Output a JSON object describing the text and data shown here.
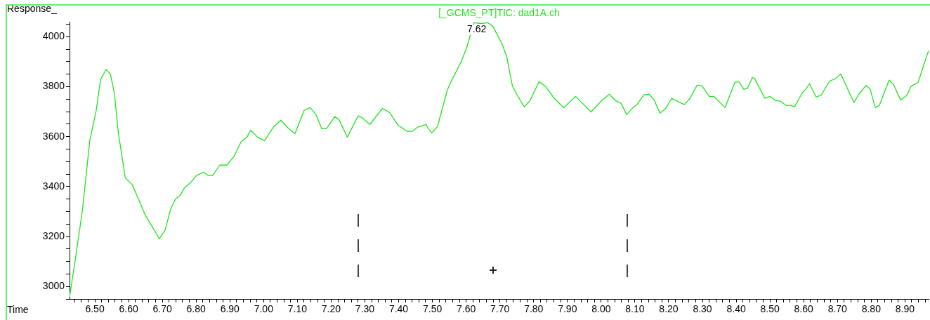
{
  "chart_data": {
    "type": "line",
    "title": "[_GCMS_PT]TIC: dad1A.ch",
    "xlabel": "Time",
    "ylabel": "Response_",
    "marker": "none",
    "xlim": [
      6.425,
      8.97
    ],
    "ylim": [
      2950,
      4060
    ],
    "xticks": [
      {
        "value": 6.44,
        "label": null
      },
      {
        "value": 6.46,
        "label": null
      },
      {
        "value": 6.48,
        "label": null
      },
      {
        "value": 6.5,
        "label": "6.50"
      },
      {
        "value": 6.52,
        "label": null
      },
      {
        "value": 6.54,
        "label": null
      },
      {
        "value": 6.56,
        "label": null
      },
      {
        "value": 6.58,
        "label": null
      },
      {
        "value": 6.6,
        "label": "6.60"
      },
      {
        "value": 6.62,
        "label": null
      },
      {
        "value": 6.64,
        "label": null
      },
      {
        "value": 6.66,
        "label": null
      },
      {
        "value": 6.68,
        "label": null
      },
      {
        "value": 6.7,
        "label": "6.70"
      },
      {
        "value": 6.72,
        "label": null
      },
      {
        "value": 6.74,
        "label": null
      },
      {
        "value": 6.76,
        "label": null
      },
      {
        "value": 6.78,
        "label": null
      },
      {
        "value": 6.8,
        "label": "6.80"
      },
      {
        "value": 6.82,
        "label": null
      },
      {
        "value": 6.84,
        "label": null
      },
      {
        "value": 6.86,
        "label": null
      },
      {
        "value": 6.88,
        "label": null
      },
      {
        "value": 6.9,
        "label": "6.90"
      },
      {
        "value": 6.92,
        "label": null
      },
      {
        "value": 6.94,
        "label": null
      },
      {
        "value": 6.96,
        "label": null
      },
      {
        "value": 6.98,
        "label": null
      },
      {
        "value": 7.0,
        "label": "7.00"
      },
      {
        "value": 7.02,
        "label": null
      },
      {
        "value": 7.04,
        "label": null
      },
      {
        "value": 7.06,
        "label": null
      },
      {
        "value": 7.08,
        "label": null
      },
      {
        "value": 7.1,
        "label": "7.10"
      },
      {
        "value": 7.12,
        "label": null
      },
      {
        "value": 7.14,
        "label": null
      },
      {
        "value": 7.16,
        "label": null
      },
      {
        "value": 7.18,
        "label": null
      },
      {
        "value": 7.2,
        "label": "7.20"
      },
      {
        "value": 7.22,
        "label": null
      },
      {
        "value": 7.24,
        "label": null
      },
      {
        "value": 7.26,
        "label": null
      },
      {
        "value": 7.28,
        "label": null
      },
      {
        "value": 7.3,
        "label": "7.30"
      },
      {
        "value": 7.32,
        "label": null
      },
      {
        "value": 7.34,
        "label": null
      },
      {
        "value": 7.36,
        "label": null
      },
      {
        "value": 7.38,
        "label": null
      },
      {
        "value": 7.4,
        "label": "7.40"
      },
      {
        "value": 7.42,
        "label": null
      },
      {
        "value": 7.44,
        "label": null
      },
      {
        "value": 7.46,
        "label": null
      },
      {
        "value": 7.48,
        "label": null
      },
      {
        "value": 7.5,
        "label": "7.50"
      },
      {
        "value": 7.52,
        "label": null
      },
      {
        "value": 7.54,
        "label": null
      },
      {
        "value": 7.56,
        "label": null
      },
      {
        "value": 7.58,
        "label": null
      },
      {
        "value": 7.6,
        "label": "7.60"
      },
      {
        "value": 7.62,
        "label": null
      },
      {
        "value": 7.64,
        "label": null
      },
      {
        "value": 7.66,
        "label": null
      },
      {
        "value": 7.68,
        "label": null
      },
      {
        "value": 7.7,
        "label": "7.70"
      },
      {
        "value": 7.72,
        "label": null
      },
      {
        "value": 7.74,
        "label": null
      },
      {
        "value": 7.76,
        "label": null
      },
      {
        "value": 7.78,
        "label": null
      },
      {
        "value": 7.8,
        "label": "7.80"
      },
      {
        "value": 7.82,
        "label": null
      },
      {
        "value": 7.84,
        "label": null
      },
      {
        "value": 7.86,
        "label": null
      },
      {
        "value": 7.88,
        "label": null
      },
      {
        "value": 7.9,
        "label": "7.90"
      },
      {
        "value": 7.92,
        "label": null
      },
      {
        "value": 7.94,
        "label": null
      },
      {
        "value": 7.96,
        "label": null
      },
      {
        "value": 7.98,
        "label": null
      },
      {
        "value": 8.0,
        "label": "8.00"
      },
      {
        "value": 8.02,
        "label": null
      },
      {
        "value": 8.04,
        "label": null
      },
      {
        "value": 8.06,
        "label": null
      },
      {
        "value": 8.08,
        "label": null
      },
      {
        "value": 8.1,
        "label": "8.10"
      },
      {
        "value": 8.12,
        "label": null
      },
      {
        "value": 8.14,
        "label": null
      },
      {
        "value": 8.16,
        "label": null
      },
      {
        "value": 8.18,
        "label": null
      },
      {
        "value": 8.2,
        "label": "8.20"
      },
      {
        "value": 8.22,
        "label": null
      },
      {
        "value": 8.24,
        "label": null
      },
      {
        "value": 8.26,
        "label": null
      },
      {
        "value": 8.28,
        "label": null
      },
      {
        "value": 8.3,
        "label": "8.30"
      },
      {
        "value": 8.32,
        "label": null
      },
      {
        "value": 8.34,
        "label": null
      },
      {
        "value": 8.36,
        "label": null
      },
      {
        "value": 8.38,
        "label": null
      },
      {
        "value": 8.4,
        "label": "8.40"
      },
      {
        "value": 8.42,
        "label": null
      },
      {
        "value": 8.44,
        "label": null
      },
      {
        "value": 8.46,
        "label": null
      },
      {
        "value": 8.48,
        "label": null
      },
      {
        "value": 8.5,
        "label": "8.50"
      },
      {
        "value": 8.52,
        "label": null
      },
      {
        "value": 8.54,
        "label": null
      },
      {
        "value": 8.56,
        "label": null
      },
      {
        "value": 8.58,
        "label": null
      },
      {
        "value": 8.6,
        "label": "8.60"
      },
      {
        "value": 8.62,
        "label": null
      },
      {
        "value": 8.64,
        "label": null
      },
      {
        "value": 8.66,
        "label": null
      },
      {
        "value": 8.68,
        "label": null
      },
      {
        "value": 8.7,
        "label": "8.70"
      },
      {
        "value": 8.72,
        "label": null
      },
      {
        "value": 8.74,
        "label": null
      },
      {
        "value": 8.76,
        "label": null
      },
      {
        "value": 8.78,
        "label": null
      },
      {
        "value": 8.8,
        "label": "8.80"
      },
      {
        "value": 8.82,
        "label": null
      },
      {
        "value": 8.84,
        "label": null
      },
      {
        "value": 8.86,
        "label": null
      },
      {
        "value": 8.88,
        "label": null
      },
      {
        "value": 8.9,
        "label": "8.90"
      },
      {
        "value": 8.92,
        "label": null
      },
      {
        "value": 8.94,
        "label": null
      },
      {
        "value": 8.96,
        "label": null
      }
    ],
    "yticks": [
      {
        "value": 2950,
        "label": null
      },
      3000,
      {
        "value": 3050,
        "label": null
      },
      {
        "value": 3100,
        "label": null
      },
      {
        "value": 3150,
        "label": null
      },
      3200,
      {
        "value": 3250,
        "label": null
      },
      {
        "value": 3300,
        "label": null
      },
      {
        "value": 3350,
        "label": null
      },
      3400,
      {
        "value": 3450,
        "label": null
      },
      {
        "value": 3500,
        "label": null
      },
      {
        "value": 3550,
        "label": null
      },
      3600,
      {
        "value": 3650,
        "label": null
      },
      {
        "value": 3700,
        "label": null
      },
      {
        "value": 3750,
        "label": null
      },
      3800,
      {
        "value": 3850,
        "label": null
      },
      {
        "value": 3900,
        "label": null
      },
      {
        "value": 3950,
        "label": null
      },
      4000,
      {
        "value": 4050,
        "label": null
      }
    ],
    "annotations": [
      {
        "text": "7.62",
        "x": 7.623,
        "y": 4056
      }
    ],
    "series": [
      {
        "color": "#1ee61e",
        "x": [
          6.425,
          6.442,
          6.463,
          6.485,
          6.504,
          6.517,
          6.533,
          6.546,
          6.558,
          6.569,
          6.59,
          6.611,
          6.629,
          6.65,
          6.67,
          6.691,
          6.708,
          6.725,
          6.739,
          6.753,
          6.766,
          6.784,
          6.801,
          6.822,
          6.836,
          6.849,
          6.87,
          6.891,
          6.912,
          6.933,
          6.951,
          6.961,
          6.982,
          7.003,
          7.03,
          7.051,
          7.072,
          7.093,
          7.12,
          7.138,
          7.155,
          7.172,
          7.186,
          7.211,
          7.223,
          7.248,
          7.28,
          7.29,
          7.315,
          7.352,
          7.373,
          7.398,
          7.425,
          7.44,
          7.456,
          7.481,
          7.488,
          7.498,
          7.515,
          7.544,
          7.556,
          7.585,
          7.602,
          7.623,
          7.643,
          7.664,
          7.679,
          7.706,
          7.72,
          7.737,
          7.751,
          7.772,
          7.789,
          7.816,
          7.834,
          7.861,
          7.889,
          7.924,
          7.945,
          7.97,
          8.001,
          8.024,
          8.043,
          8.059,
          8.076,
          8.094,
          8.107,
          8.126,
          8.142,
          8.157,
          8.174,
          8.19,
          8.209,
          8.226,
          8.246,
          8.263,
          8.284,
          8.299,
          8.32,
          8.334,
          8.367,
          8.396,
          8.408,
          8.423,
          8.434,
          8.448,
          8.454,
          8.485,
          8.5,
          8.517,
          8.531,
          8.548,
          8.562,
          8.573,
          8.594,
          8.607,
          8.617,
          8.637,
          8.652,
          8.677,
          8.693,
          8.71,
          8.731,
          8.749,
          8.762,
          8.785,
          8.797,
          8.812,
          8.824,
          8.853,
          8.866,
          8.887,
          8.905,
          8.918,
          8.939,
          8.957,
          8.97
        ],
        "values": [
          2958,
          3107,
          3303,
          3584,
          3705,
          3829,
          3868,
          3851,
          3772,
          3621,
          3435,
          3407,
          3351,
          3284,
          3239,
          3191,
          3225,
          3312,
          3351,
          3365,
          3396,
          3416,
          3444,
          3458,
          3444,
          3444,
          3486,
          3486,
          3520,
          3579,
          3598,
          3626,
          3598,
          3584,
          3640,
          3666,
          3635,
          3612,
          3705,
          3716,
          3688,
          3632,
          3632,
          3680,
          3669,
          3598,
          3683,
          3677,
          3649,
          3713,
          3697,
          3646,
          3621,
          3621,
          3638,
          3649,
          3632,
          3615,
          3640,
          3786,
          3823,
          3899,
          3958,
          4056,
          4053,
          4056,
          4042,
          3972,
          3921,
          3803,
          3767,
          3719,
          3744,
          3820,
          3803,
          3753,
          3716,
          3761,
          3733,
          3699,
          3744,
          3770,
          3744,
          3733,
          3688,
          3716,
          3730,
          3767,
          3770,
          3747,
          3694,
          3711,
          3753,
          3742,
          3728,
          3753,
          3806,
          3803,
          3761,
          3761,
          3716,
          3817,
          3820,
          3789,
          3795,
          3837,
          3834,
          3753,
          3761,
          3744,
          3742,
          3725,
          3725,
          3719,
          3772,
          3792,
          3812,
          3758,
          3767,
          3823,
          3831,
          3851,
          3789,
          3736,
          3767,
          3806,
          3789,
          3716,
          3725,
          3826,
          3809,
          3747,
          3764,
          3801,
          3817,
          3893,
          3944
        ]
      }
    ]
  }
}
